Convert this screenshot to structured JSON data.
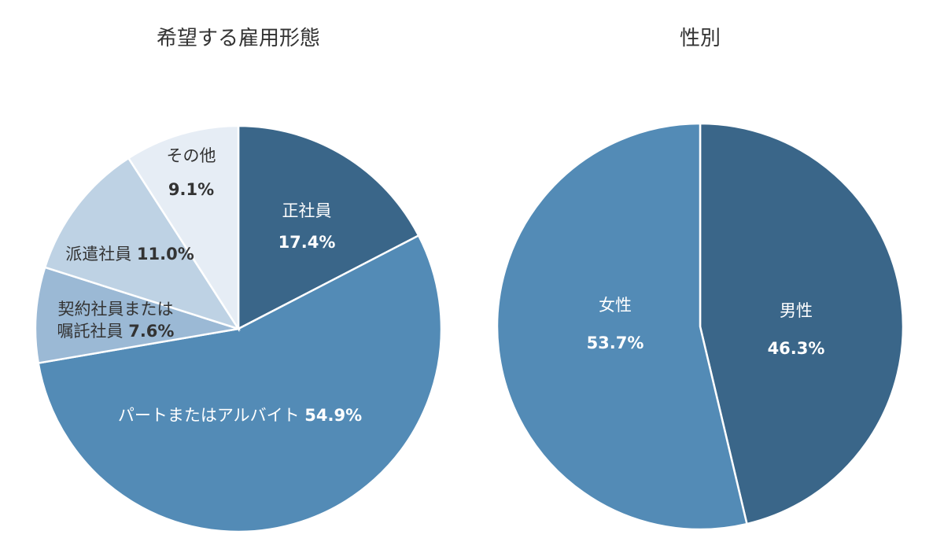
{
  "chart_data": [
    {
      "type": "pie",
      "title": "希望する雇用形態",
      "start": "top",
      "direction": "clockwise",
      "slices": [
        {
          "label": "正社員",
          "value": 17.4,
          "value_label": "17.4%",
          "color": "#3a6689",
          "text_color": "#ffffff"
        },
        {
          "label": "パートまたはアルバイト",
          "value": 54.9,
          "value_label": "54.9%",
          "color": "#538bb6",
          "text_color": "#ffffff"
        },
        {
          "label": "契約社員または嘱託社員",
          "label_lines": [
            "契約社員または",
            "嘱託社員"
          ],
          "value": 7.6,
          "value_label": "7.6%",
          "color": "#9bb9d5",
          "text_color": "#333333"
        },
        {
          "label": "派遣社員",
          "value": 11.0,
          "value_label": "11.0%",
          "color": "#bed2e4",
          "text_color": "#333333"
        },
        {
          "label": "その他",
          "value": 9.1,
          "value_label": "9.1%",
          "color": "#e6edf5",
          "text_color": "#333333"
        }
      ]
    },
    {
      "type": "pie",
      "title": "性別",
      "start": "top",
      "direction": "clockwise",
      "slices": [
        {
          "label": "男性",
          "value": 46.3,
          "value_label": "46.3%",
          "color": "#3a6689",
          "text_color": "#ffffff"
        },
        {
          "label": "女性",
          "value": 53.7,
          "value_label": "53.7%",
          "color": "#538bb6",
          "text_color": "#ffffff"
        }
      ]
    }
  ]
}
